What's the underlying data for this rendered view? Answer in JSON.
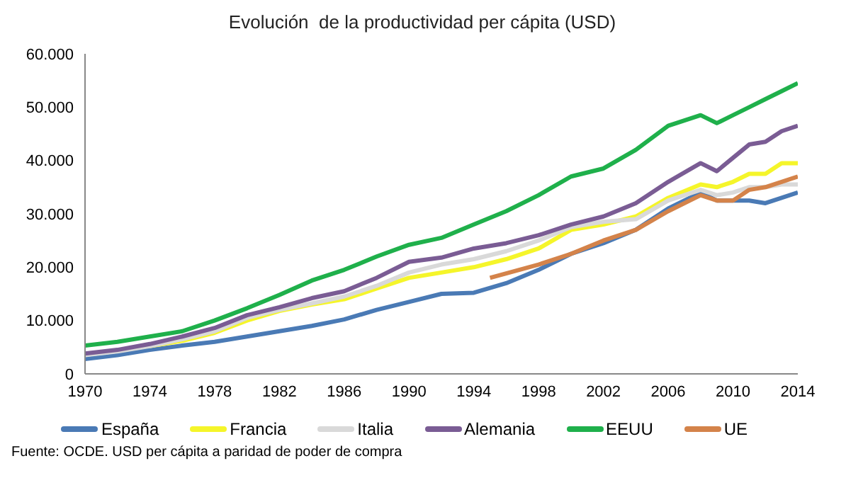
{
  "chart_data": {
    "type": "line",
    "title": "Evolución  de la productividad per cápita (USD)",
    "annotations": [
      "Fuente: OCDE. USD per cápita a paridad de poder de compra"
    ],
    "x": [
      1970,
      1972,
      1974,
      1976,
      1978,
      1980,
      1982,
      1984,
      1986,
      1988,
      1990,
      1992,
      1994,
      1996,
      1998,
      2000,
      2002,
      2004,
      2006,
      2008,
      2009,
      2010,
      2011,
      2012,
      2013,
      2014
    ],
    "series": [
      {
        "name": "España",
        "color": "#4a7ab5",
        "values": [
          2800,
          3500,
          4500,
          5300,
          6000,
          7000,
          8000,
          9000,
          10200,
          12000,
          13500,
          15000,
          15200,
          17000,
          19500,
          22500,
          24500,
          27000,
          31000,
          34000,
          32500,
          32500,
          32500,
          32000,
          33000,
          34000
        ]
      },
      {
        "name": "Francia",
        "color": "#f5f52a",
        "values": [
          null,
          null,
          5200,
          6200,
          7700,
          10000,
          11800,
          13000,
          14000,
          16000,
          18000,
          19000,
          20000,
          21500,
          23500,
          27000,
          28000,
          29500,
          33000,
          35500,
          35000,
          36000,
          37500,
          37500,
          39500,
          39500
        ]
      },
      {
        "name": "Italia",
        "color": "#d9d9d9",
        "values": [
          3500,
          4200,
          5200,
          6500,
          8000,
          10500,
          12000,
          13200,
          14500,
          16500,
          19000,
          20500,
          21500,
          23000,
          25000,
          27500,
          28500,
          29000,
          32500,
          34500,
          33500,
          34000,
          35000,
          35000,
          35500,
          35500
        ]
      },
      {
        "name": "Alemania",
        "color": "#7a5c94",
        "values": [
          3800,
          4500,
          5600,
          7000,
          8600,
          11000,
          12500,
          14200,
          15500,
          18000,
          21000,
          21800,
          23500,
          24500,
          26000,
          28000,
          29500,
          32000,
          36000,
          39500,
          38000,
          40500,
          43000,
          43500,
          45500,
          46500
        ]
      },
      {
        "name": "EEUU",
        "color": "#1fb04b",
        "values": [
          5300,
          6000,
          7000,
          8000,
          10000,
          12300,
          14800,
          17500,
          19500,
          22000,
          24200,
          25500,
          28000,
          30500,
          33500,
          37000,
          38500,
          42000,
          46500,
          48500,
          47000,
          48500,
          50000,
          51500,
          53000,
          54500
        ]
      },
      {
        "name": "UE",
        "color": "#d4834a",
        "x": [
          1995,
          1998,
          2000,
          2002,
          2004,
          2006,
          2008,
          2009,
          2010,
          2011,
          2012,
          2013,
          2014
        ],
        "values": [
          18000,
          20500,
          22500,
          25000,
          27000,
          30500,
          33500,
          32500,
          32500,
          34500,
          35000,
          36000,
          37000
        ]
      }
    ],
    "xlim": [
      1970,
      2014
    ],
    "xticks": [
      1970,
      1974,
      1978,
      1982,
      1986,
      1990,
      1994,
      1998,
      2002,
      2006,
      2010,
      2014
    ],
    "ylim": [
      0,
      60000
    ],
    "yticks": [
      0,
      {
        "value": 10000,
        "label": "10.000"
      },
      {
        "value": 20000,
        "label": "20.000"
      },
      {
        "value": 30000,
        "label": "30.000"
      },
      {
        "value": 40000,
        "label": "40.000"
      },
      {
        "value": 50000,
        "label": "50.000"
      },
      {
        "value": 60000,
        "label": "60.000"
      }
    ],
    "grid": false,
    "legend": "bottom",
    "marker": "none",
    "line_style": "solid"
  }
}
